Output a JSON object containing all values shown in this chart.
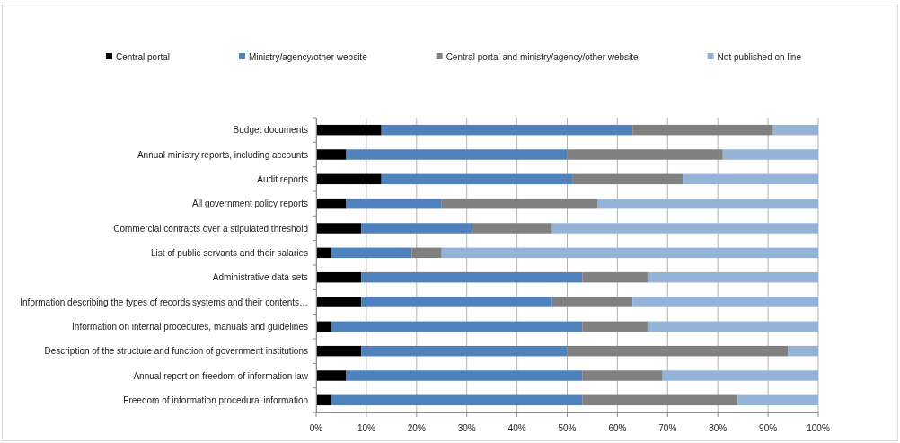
{
  "chart_data": {
    "type": "bar",
    "orientation": "horizontal",
    "stacked": true,
    "categories": [
      "Budget documents",
      "Annual ministry reports, including accounts",
      "Audit reports",
      "All government policy reports",
      "Commercial contracts over a stipulated threshold",
      "List of public servants and their salaries",
      "Administrative data sets",
      "Information describing the types of records systems and their contents…",
      "Information on internal procedures, manuals and guidelines",
      "Description of the structure and function of government institutions",
      "Annual report on freedom of information law",
      "Freedom of information procedural information"
    ],
    "series": [
      {
        "name": "Central portal",
        "color": "#000000",
        "values": [
          13,
          6,
          13,
          6,
          9,
          3,
          9,
          9,
          3,
          9,
          6,
          3
        ]
      },
      {
        "name": "Ministry/agency/other website",
        "color": "#4f81bd",
        "values": [
          50,
          44,
          38,
          19,
          22,
          16,
          44,
          38,
          50,
          41,
          47,
          50
        ]
      },
      {
        "name": "Central portal and ministry/agency/other website",
        "color": "#808080",
        "values": [
          28,
          31,
          22,
          31,
          16,
          6,
          13,
          16,
          13,
          44,
          16,
          31
        ]
      },
      {
        "name": "Not published on line",
        "color": "#95b3d7",
        "values": [
          9,
          19,
          27,
          44,
          53,
          75,
          34,
          37,
          34,
          6,
          31,
          16
        ]
      }
    ],
    "xlim": [
      0,
      100
    ],
    "xticks": [
      {
        "value": 0,
        "label": "0%"
      },
      {
        "value": 10,
        "label": "10%"
      },
      {
        "value": 20,
        "label": "20%"
      },
      {
        "value": 30,
        "label": "30%"
      },
      {
        "value": 40,
        "label": "40%"
      },
      {
        "value": 50,
        "label": "50%"
      },
      {
        "value": 60,
        "label": "60%"
      },
      {
        "value": 70,
        "label": "70%"
      },
      {
        "value": 80,
        "label": "80%"
      },
      {
        "value": 90,
        "label": "90%"
      },
      {
        "value": 100,
        "label": "100%"
      }
    ],
    "grid": "x",
    "legend": "top"
  }
}
